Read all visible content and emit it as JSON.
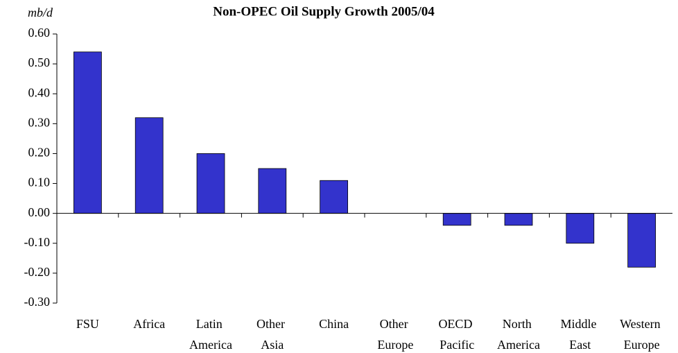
{
  "chart_data": {
    "type": "bar",
    "title": "Non-OPEC Oil Supply Growth 2005/04",
    "y_label": "mb/d",
    "categories": [
      "FSU",
      "Africa",
      "Latin America",
      "Other Asia",
      "China",
      "Other Europe",
      "OECD Pacific",
      "North America",
      "Middle East",
      "Western Europe"
    ],
    "values": [
      0.54,
      0.32,
      0.2,
      0.15,
      0.11,
      0,
      -0.04,
      -0.04,
      -0.1,
      -0.18
    ],
    "color": "#3333cc",
    "ylim": [
      -0.3,
      0.6
    ],
    "yticks": [
      {
        "value": 0.6,
        "label": "0.60"
      },
      {
        "value": 0.5,
        "label": "0.50"
      },
      {
        "value": 0.4,
        "label": "0.40"
      },
      {
        "value": 0.3,
        "label": "0.30"
      },
      {
        "value": 0.2,
        "label": "0.20"
      },
      {
        "value": 0.1,
        "label": "0.10"
      },
      {
        "value": 0,
        "label": "0.00"
      },
      {
        "value": -0.1,
        "label": "-0.10"
      },
      {
        "value": -0.2,
        "label": "-0.20"
      },
      {
        "value": -0.3,
        "label": "-0.30"
      }
    ],
    "grid": false
  }
}
